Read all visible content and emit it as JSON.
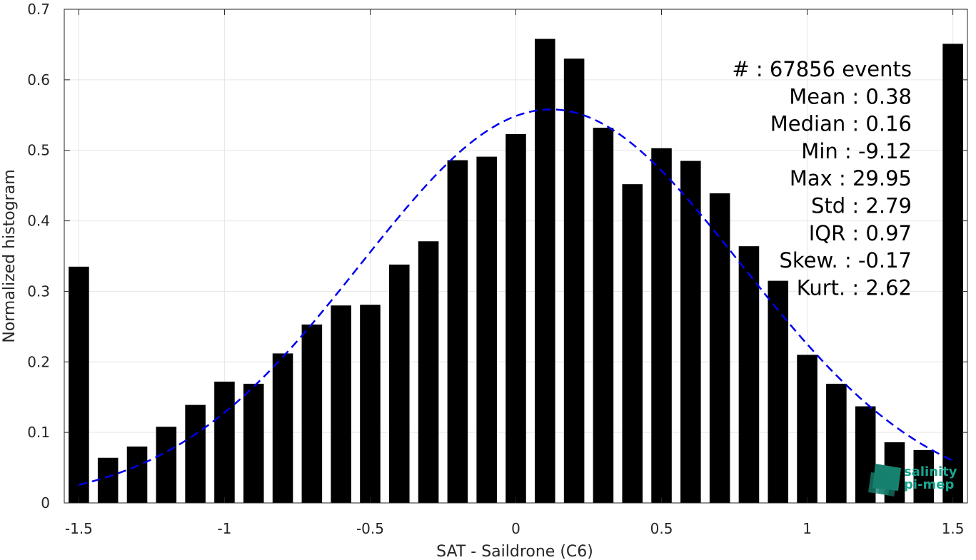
{
  "chart_data": {
    "type": "bar",
    "xlabel": "SAT - Saildrone (C6)",
    "ylabel": "Normalized histogram",
    "xlim": [
      -1.55,
      1.55
    ],
    "ylim": [
      0,
      0.7
    ],
    "xticks": [
      -1.5,
      -1,
      -0.5,
      0,
      0.5,
      1,
      1.5
    ],
    "xtick_labels": [
      "-1.5",
      "-1",
      "-0.5",
      "0",
      "0.5",
      "1",
      "1.5"
    ],
    "yticks": [
      0,
      0.1,
      0.2,
      0.3,
      0.4,
      0.5,
      0.6,
      0.7
    ],
    "ytick_labels": [
      "0",
      "0.1",
      "0.2",
      "0.3",
      "0.4",
      "0.5",
      "0.6",
      "0.7"
    ],
    "grid": true,
    "bar_color": "#000000",
    "bars": {
      "x": [
        -1.5,
        -1.4,
        -1.3,
        -1.2,
        -1.1,
        -1.0,
        -0.9,
        -0.8,
        -0.7,
        -0.6,
        -0.5,
        -0.4,
        -0.3,
        -0.2,
        -0.1,
        0.0,
        0.1,
        0.2,
        0.3,
        0.4,
        0.5,
        0.6,
        0.7,
        0.8,
        0.9,
        1.0,
        1.1,
        1.2,
        1.3,
        1.4,
        1.5
      ],
      "values": [
        0.335,
        0.064,
        0.08,
        0.108,
        0.139,
        0.172,
        0.169,
        0.212,
        0.253,
        0.28,
        0.281,
        0.338,
        0.371,
        0.486,
        0.491,
        0.523,
        0.658,
        0.63,
        0.532,
        0.452,
        0.503,
        0.485,
        0.439,
        0.364,
        0.315,
        0.21,
        0.169,
        0.137,
        0.086,
        0.075,
        0.651
      ]
    },
    "fit_curve": {
      "style": "dashed",
      "color": "#0000ee",
      "distribution": "normal",
      "mean": 0.12,
      "sigma": 0.653,
      "peak": 0.558,
      "x_range": [
        -1.5,
        1.5
      ]
    }
  },
  "stats": [
    "#  : 67856 events",
    "Mean : 0.38",
    "Median : 0.16",
    "Min : -9.12",
    "Max : 29.95",
    "Std : 2.79",
    "IQR : 0.97",
    "Skew. : -0.17",
    "Kurt. : 2.62"
  ],
  "logo": {
    "line1": "salinity",
    "line2": "pi-mep",
    "color_text": "#1aa58e",
    "color_mark": "#17806e"
  }
}
